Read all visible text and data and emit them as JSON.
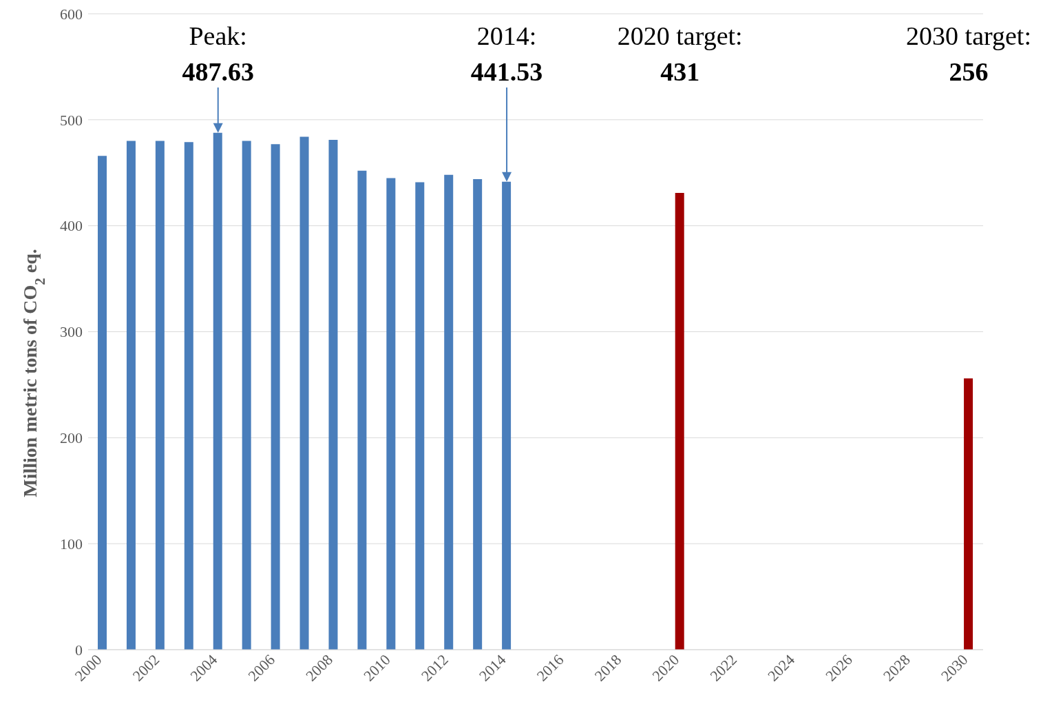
{
  "chart_data": {
    "type": "bar",
    "ylabel": "Million metric tons of CO$_{2}$ eq.",
    "categories": [
      "2000",
      null,
      "2002",
      null,
      "2004",
      null,
      "2006",
      null,
      "2008",
      null,
      "2010",
      null,
      "2012",
      null,
      "2014",
      null,
      "2016",
      null,
      "2018",
      null,
      "2020",
      null,
      "2022",
      null,
      "2024",
      null,
      "2026",
      null,
      "2028",
      null,
      "2030"
    ],
    "values": [
      466,
      480,
      480,
      479,
      487.63,
      480,
      477,
      484,
      481,
      452,
      445,
      441,
      448,
      444,
      441.53,
      null,
      null,
      null,
      null,
      null,
      431,
      null,
      null,
      null,
      null,
      null,
      null,
      null,
      null,
      null,
      256
    ],
    "colors": [
      "#4a7ebb",
      "#4a7ebb",
      "#4a7ebb",
      "#4a7ebb",
      "#4a7ebb",
      "#4a7ebb",
      "#4a7ebb",
      "#4a7ebb",
      "#4a7ebb",
      "#4a7ebb",
      "#4a7ebb",
      "#4a7ebb",
      "#4a7ebb",
      "#4a7ebb",
      "#4a7ebb",
      null,
      null,
      null,
      null,
      null,
      "#a00000",
      null,
      null,
      null,
      null,
      null,
      null,
      null,
      null,
      null,
      "#a00000"
    ],
    "ylim": [
      0,
      600
    ],
    "yticks": [
      0,
      100,
      200,
      300,
      400,
      500,
      600
    ],
    "grid": "y",
    "annotations": [
      {
        "text": "Peak:\n487.63",
        "x": "2004",
        "y": 487.63
      },
      "2014:\n441.53",
      "2020 target:\n431",
      "2030 target:\n256"
    ]
  }
}
